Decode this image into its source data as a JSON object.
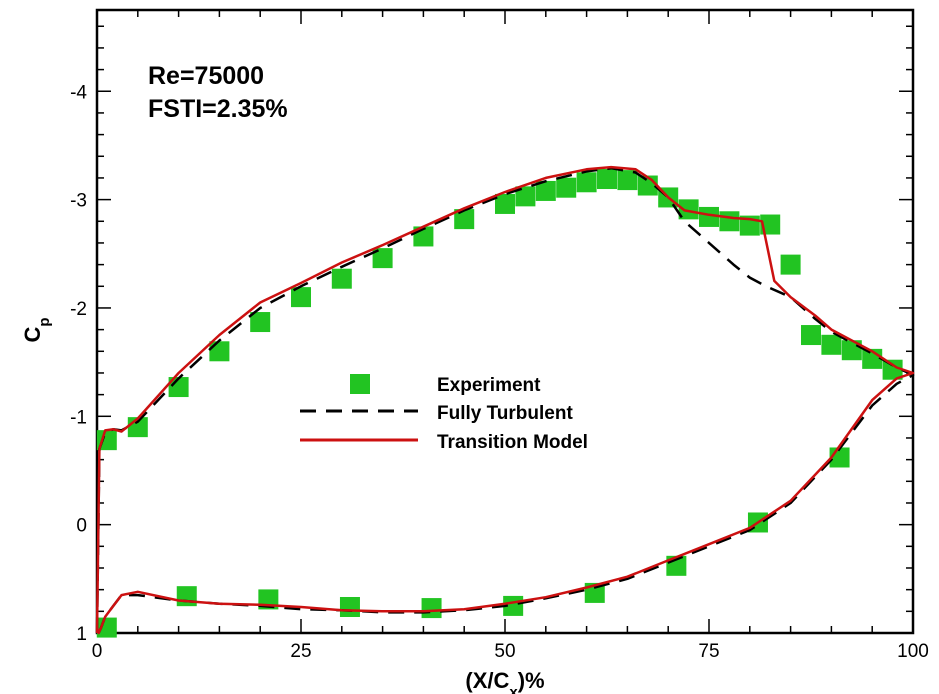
{
  "chart_data": {
    "type": "line",
    "xlabel": "(X/C_x)%",
    "ylabel": "C_p",
    "xlim": [
      0,
      100
    ],
    "ylim": [
      1,
      -4.75
    ],
    "y_inverted": true,
    "x_ticks": [
      0,
      25,
      50,
      75,
      100
    ],
    "y_ticks": [
      -4,
      -3,
      -2,
      -1,
      0,
      1
    ],
    "grid": false,
    "legend_position": "center",
    "annotations": [
      "Re=75000",
      "FSTI=2.35%"
    ],
    "colors": {
      "experiment": "#22c422",
      "fully_turbulent": "#000000",
      "transition_model": "#cc1111"
    },
    "series": [
      {
        "name": "Experiment",
        "kind": "markers",
        "x": [
          1.2,
          5,
          10,
          15,
          20,
          25,
          30,
          35,
          40,
          45,
          50,
          52.5,
          55,
          57.5,
          60,
          62.5,
          65,
          67.5,
          70,
          72.5,
          75,
          77.5,
          80,
          82.5,
          85,
          87.5,
          90,
          92.5,
          95,
          97.5,
          1.2,
          11,
          21,
          31,
          41,
          51,
          61,
          71,
          81,
          91
        ],
        "y": [
          -0.78,
          -0.9,
          -1.27,
          -1.6,
          -1.87,
          -2.1,
          -2.27,
          -2.46,
          -2.66,
          -2.82,
          -2.96,
          -3.03,
          -3.08,
          -3.11,
          -3.16,
          -3.19,
          -3.18,
          -3.13,
          -3.02,
          -2.91,
          -2.84,
          -2.8,
          -2.76,
          -2.77,
          -2.4,
          -1.75,
          -1.66,
          -1.61,
          -1.53,
          -1.43,
          0.95,
          0.66,
          0.69,
          0.76,
          0.77,
          0.75,
          0.63,
          0.38,
          -0.02,
          -0.62
        ]
      },
      {
        "name": "Fully Turbulent",
        "kind": "dashed-line",
        "x": [
          0,
          0.3,
          1,
          2,
          3,
          5,
          10,
          15,
          20,
          25,
          30,
          35,
          40,
          45,
          50,
          55,
          60,
          63,
          66,
          68,
          70,
          72,
          75,
          78,
          80,
          82,
          85,
          88,
          90,
          95,
          98,
          100,
          98,
          95,
          90,
          85,
          80,
          75,
          70,
          65,
          60,
          55,
          50,
          45,
          40,
          35,
          30,
          25,
          20,
          15,
          10,
          5,
          3,
          2,
          1,
          0.5,
          0.2,
          0
        ],
        "y": [
          1,
          -0.7,
          -0.85,
          -0.88,
          -0.87,
          -0.95,
          -1.35,
          -1.7,
          -2,
          -2.2,
          -2.38,
          -2.55,
          -2.73,
          -2.9,
          -3.05,
          -3.17,
          -3.26,
          -3.29,
          -3.25,
          -3.15,
          -3.02,
          -2.8,
          -2.6,
          -2.4,
          -2.28,
          -2.2,
          -2.1,
          -1.9,
          -1.78,
          -1.58,
          -1.45,
          -1.38,
          -1.3,
          -1.1,
          -0.6,
          -0.2,
          0.05,
          0.2,
          0.35,
          0.5,
          0.6,
          0.68,
          0.75,
          0.79,
          0.81,
          0.81,
          0.79,
          0.78,
          0.75,
          0.73,
          0.7,
          0.65,
          0.65,
          0.75,
          0.85,
          0.95,
          1,
          0.95
        ]
      },
      {
        "name": "Transition Model",
        "kind": "solid-line",
        "x": [
          0,
          0.3,
          1,
          2,
          3,
          5,
          10,
          15,
          20,
          25,
          30,
          35,
          40,
          45,
          50,
          55,
          60,
          63,
          66,
          68,
          70,
          72,
          75,
          78,
          80,
          81.5,
          83,
          85,
          88,
          90,
          95,
          98,
          100,
          98,
          95,
          90,
          85,
          80,
          75,
          70,
          65,
          60,
          55,
          50,
          45,
          40,
          35,
          30,
          25,
          20,
          15,
          10,
          5,
          3,
          2,
          1,
          0.5,
          0.2,
          0
        ],
        "y": [
          1,
          -0.7,
          -0.87,
          -0.88,
          -0.86,
          -0.98,
          -1.4,
          -1.75,
          -2.05,
          -2.23,
          -2.42,
          -2.58,
          -2.75,
          -2.92,
          -3.07,
          -3.2,
          -3.28,
          -3.3,
          -3.28,
          -3.18,
          -3.02,
          -2.9,
          -2.86,
          -2.83,
          -2.82,
          -2.8,
          -2.25,
          -2.1,
          -1.93,
          -1.8,
          -1.6,
          -1.45,
          -1.4,
          -1.35,
          -1.15,
          -0.62,
          -0.22,
          0.03,
          0.18,
          0.33,
          0.48,
          0.58,
          0.67,
          0.73,
          0.78,
          0.8,
          0.8,
          0.79,
          0.76,
          0.74,
          0.73,
          0.7,
          0.62,
          0.65,
          0.75,
          0.85,
          0.95,
          1,
          0.95
        ]
      }
    ]
  }
}
